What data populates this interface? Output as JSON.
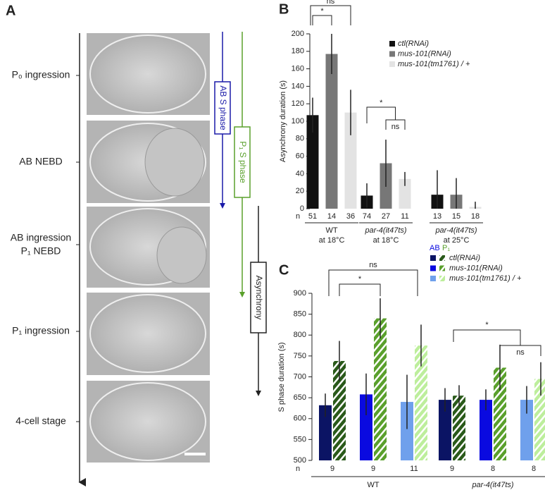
{
  "panel_a": {
    "panel": "A",
    "stages": [
      "P₀ ingression",
      "AB NEBD",
      "AB ingression",
      "P₁ NEBD",
      "P₁ ingression",
      "4-cell stage"
    ],
    "phases": [
      "AB S phase",
      "P₁ S phase",
      "Asynchrony"
    ]
  },
  "chart_data": [
    {
      "panel": "B",
      "type": "bar",
      "ylabel": "Asynchrony duration (s)",
      "ylim": [
        0,
        200
      ],
      "yticks": [
        0,
        20,
        40,
        60,
        80,
        100,
        120,
        140,
        160,
        180,
        200
      ],
      "categories": [
        "WT",
        "par-4(it47ts)",
        "par-4(it47ts)"
      ],
      "category_sublabels": [
        "at 18°C",
        "at 18°C",
        "at 25°C"
      ],
      "n_label": "n",
      "series": [
        {
          "name": "ctl(RNAi)",
          "color": "#111111",
          "values": [
            107,
            15,
            16
          ],
          "errors": [
            20,
            14,
            28
          ],
          "n": [
            51,
            74,
            13
          ]
        },
        {
          "name": "mus-101(RNAi)",
          "color": "#777777",
          "values": [
            177,
            52,
            16
          ],
          "errors": [
            23,
            27,
            19
          ],
          "n": [
            14,
            27,
            15
          ]
        },
        {
          "name": "mus-101(tm1761) / +",
          "color": "#e3e3e3",
          "values": [
            110,
            34,
            2
          ],
          "errors": [
            26,
            8,
            6
          ],
          "n": [
            36,
            11,
            18
          ]
        }
      ],
      "annotations": [
        "*",
        "ns",
        "*",
        "ns"
      ]
    },
    {
      "panel": "C",
      "type": "paired_bar",
      "ylabel": "S phase duration (s)",
      "ylim": [
        500,
        900
      ],
      "yticks": [
        500,
        550,
        600,
        650,
        700,
        750,
        800,
        850,
        900
      ],
      "categories": [
        "WT",
        "par-4(it47ts)"
      ],
      "n_label": "n",
      "legend_header": [
        "AB",
        "P₁"
      ],
      "series": [
        {
          "name": "ctl(RNAi)",
          "color": "#0b1464",
          "p1_color": "#2a5a1a",
          "values": [
            632,
            645
          ],
          "errors": [
            28,
            28
          ],
          "p1_values": [
            738,
            655
          ],
          "p1_errors": [
            48,
            25
          ],
          "n": [
            9,
            9
          ]
        },
        {
          "name": "mus-101(RNAi)",
          "color": "#0a0ae0",
          "p1_color": "#5aa02c",
          "values": [
            658,
            645
          ],
          "errors": [
            50,
            25
          ],
          "p1_values": [
            840,
            722
          ],
          "p1_errors": [
            48,
            55
          ],
          "n": [
            9,
            8
          ]
        },
        {
          "name": "mus-101(tm1761) / +",
          "color": "#6fa0ec",
          "p1_color": "#bdee9c",
          "values": [
            640,
            645
          ],
          "errors": [
            65,
            33
          ],
          "p1_values": [
            775,
            695
          ],
          "p1_errors": [
            50,
            40
          ],
          "n": [
            11,
            8
          ]
        }
      ],
      "annotations": [
        "ns",
        "*",
        "*",
        "ns"
      ]
    }
  ]
}
